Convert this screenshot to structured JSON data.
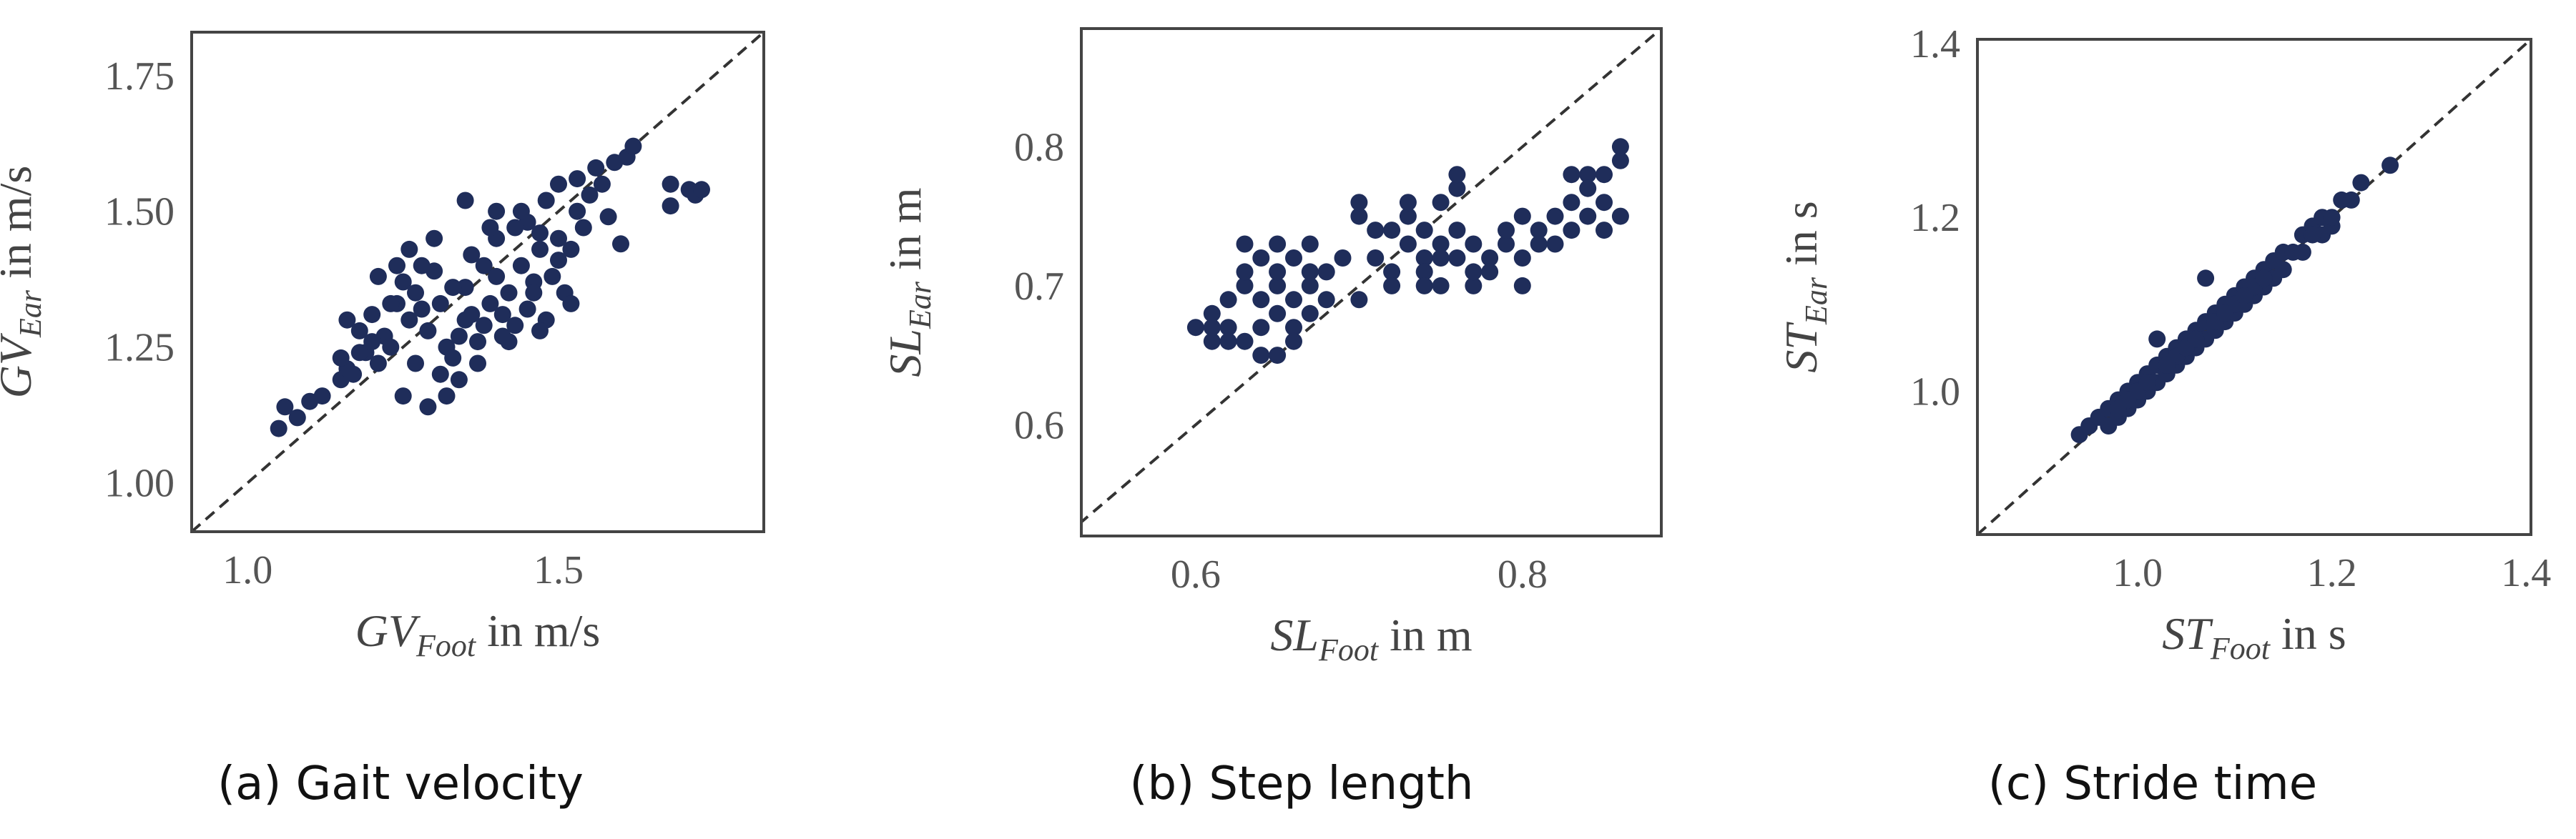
{
  "colors": {
    "points": "#1f2d5a",
    "frame": "#444444",
    "diagonal": "#333333"
  },
  "chart_data": [
    {
      "type": "scatter",
      "caption": "(a) Gait velocity",
      "xlabel": {
        "main": "GV",
        "sub": "Foot",
        "unit": "in m/s"
      },
      "ylabel": {
        "main": "GV",
        "sub": "Ear",
        "unit": "in m/s"
      },
      "xlim": [
        0.91,
        1.83
      ],
      "ylim": [
        0.91,
        1.83
      ],
      "xticks": [
        1.0,
        1.5
      ],
      "xtick_labels": [
        "1.0",
        "1.5"
      ],
      "yticks": [
        1.0,
        1.25,
        1.5,
        1.75
      ],
      "ytick_labels": [
        "1.00",
        "1.25",
        "1.50",
        "1.75"
      ],
      "identity_line": true,
      "grid": false,
      "points": [
        [
          1.05,
          1.1
        ],
        [
          1.06,
          1.14
        ],
        [
          1.08,
          1.12
        ],
        [
          1.1,
          1.15
        ],
        [
          1.12,
          1.16
        ],
        [
          1.15,
          1.19
        ],
        [
          1.16,
          1.21
        ],
        [
          1.17,
          1.2
        ],
        [
          1.16,
          1.3
        ],
        [
          1.18,
          1.28
        ],
        [
          1.19,
          1.24
        ],
        [
          1.2,
          1.31
        ],
        [
          1.21,
          1.22
        ],
        [
          1.22,
          1.27
        ],
        [
          1.23,
          1.25
        ],
        [
          1.24,
          1.33
        ],
        [
          1.24,
          1.4
        ],
        [
          1.25,
          1.37
        ],
        [
          1.26,
          1.3
        ],
        [
          1.26,
          1.43
        ],
        [
          1.27,
          1.35
        ],
        [
          1.28,
          1.32
        ],
        [
          1.29,
          1.28
        ],
        [
          1.3,
          1.45
        ],
        [
          1.3,
          1.39
        ],
        [
          1.31,
          1.2
        ],
        [
          1.32,
          1.25
        ],
        [
          1.32,
          1.16
        ],
        [
          1.33,
          1.23
        ],
        [
          1.34,
          1.27
        ],
        [
          1.35,
          1.3
        ],
        [
          1.35,
          1.36
        ],
        [
          1.36,
          1.42
        ],
        [
          1.37,
          1.26
        ],
        [
          1.38,
          1.29
        ],
        [
          1.38,
          1.4
        ],
        [
          1.39,
          1.33
        ],
        [
          1.4,
          1.38
        ],
        [
          1.4,
          1.45
        ],
        [
          1.41,
          1.31
        ],
        [
          1.42,
          1.26
        ],
        [
          1.42,
          1.35
        ],
        [
          1.43,
          1.29
        ],
        [
          1.44,
          1.4
        ],
        [
          1.45,
          1.32
        ],
        [
          1.45,
          1.48
        ],
        [
          1.46,
          1.37
        ],
        [
          1.47,
          1.43
        ],
        [
          1.48,
          1.3
        ],
        [
          1.48,
          1.52
        ],
        [
          1.49,
          1.38
        ],
        [
          1.5,
          1.41
        ],
        [
          1.5,
          1.45
        ],
        [
          1.51,
          1.35
        ],
        [
          1.52,
          1.43
        ],
        [
          1.53,
          1.5
        ],
        [
          1.53,
          1.56
        ],
        [
          1.54,
          1.47
        ],
        [
          1.55,
          1.53
        ],
        [
          1.56,
          1.58
        ],
        [
          1.57,
          1.55
        ],
        [
          1.58,
          1.49
        ],
        [
          1.59,
          1.59
        ],
        [
          1.6,
          1.44
        ],
        [
          1.61,
          1.6
        ],
        [
          1.62,
          1.62
        ],
        [
          1.29,
          1.14
        ],
        [
          1.34,
          1.19
        ],
        [
          1.27,
          1.22
        ],
        [
          1.23,
          1.33
        ],
        [
          1.21,
          1.38
        ],
        [
          1.31,
          1.33
        ],
        [
          1.39,
          1.47
        ],
        [
          1.44,
          1.5
        ],
        [
          1.47,
          1.46
        ],
        [
          1.36,
          1.31
        ],
        [
          1.41,
          1.27
        ],
        [
          1.25,
          1.16
        ],
        [
          1.18,
          1.24
        ],
        [
          1.46,
          1.35
        ],
        [
          1.68,
          1.55
        ],
        [
          1.71,
          1.54
        ],
        [
          1.72,
          1.53
        ],
        [
          1.68,
          1.51
        ],
        [
          1.73,
          1.54
        ],
        [
          1.35,
          1.52
        ],
        [
          1.4,
          1.5
        ],
        [
          1.5,
          1.55
        ],
        [
          1.28,
          1.4
        ],
        [
          1.33,
          1.36
        ],
        [
          1.2,
          1.26
        ],
        [
          1.15,
          1.23
        ],
        [
          1.37,
          1.22
        ],
        [
          1.43,
          1.47
        ],
        [
          1.52,
          1.33
        ],
        [
          1.47,
          1.28
        ]
      ]
    },
    {
      "type": "scatter",
      "caption": "(b) Step length",
      "xlabel": {
        "main": "SL",
        "sub": "Foot",
        "unit": "in m"
      },
      "ylabel": {
        "main": "SL",
        "sub": "Ear",
        "unit": "in m"
      },
      "xlim": [
        0.53,
        0.885
      ],
      "ylim": [
        0.52,
        0.885
      ],
      "xticks": [
        0.6,
        0.8
      ],
      "xtick_labels": [
        "0.6",
        "0.8"
      ],
      "yticks": [
        0.6,
        0.7,
        0.8
      ],
      "ytick_labels": [
        "0.6",
        "0.7",
        "0.8"
      ],
      "identity_line": true,
      "grid": false,
      "points": [
        [
          0.6,
          0.67
        ],
        [
          0.61,
          0.66
        ],
        [
          0.61,
          0.68
        ],
        [
          0.62,
          0.69
        ],
        [
          0.62,
          0.67
        ],
        [
          0.63,
          0.7
        ],
        [
          0.63,
          0.71
        ],
        [
          0.63,
          0.66
        ],
        [
          0.64,
          0.69
        ],
        [
          0.64,
          0.67
        ],
        [
          0.64,
          0.72
        ],
        [
          0.65,
          0.7
        ],
        [
          0.65,
          0.68
        ],
        [
          0.65,
          0.73
        ],
        [
          0.65,
          0.71
        ],
        [
          0.66,
          0.69
        ],
        [
          0.66,
          0.67
        ],
        [
          0.66,
          0.72
        ],
        [
          0.67,
          0.7
        ],
        [
          0.67,
          0.68
        ],
        [
          0.67,
          0.73
        ],
        [
          0.68,
          0.69
        ],
        [
          0.68,
          0.71
        ],
        [
          0.66,
          0.66
        ],
        [
          0.62,
          0.66
        ],
        [
          0.64,
          0.65
        ],
        [
          0.7,
          0.69
        ],
        [
          0.7,
          0.75
        ],
        [
          0.71,
          0.74
        ],
        [
          0.71,
          0.72
        ],
        [
          0.72,
          0.71
        ],
        [
          0.72,
          0.7
        ],
        [
          0.73,
          0.73
        ],
        [
          0.73,
          0.75
        ],
        [
          0.73,
          0.76
        ],
        [
          0.74,
          0.74
        ],
        [
          0.74,
          0.72
        ],
        [
          0.74,
          0.71
        ],
        [
          0.75,
          0.73
        ],
        [
          0.75,
          0.76
        ],
        [
          0.75,
          0.7
        ],
        [
          0.76,
          0.74
        ],
        [
          0.76,
          0.72
        ],
        [
          0.76,
          0.77
        ],
        [
          0.77,
          0.7
        ],
        [
          0.77,
          0.71
        ],
        [
          0.78,
          0.72
        ],
        [
          0.78,
          0.71
        ],
        [
          0.79,
          0.73
        ],
        [
          0.79,
          0.74
        ],
        [
          0.8,
          0.72
        ],
        [
          0.8,
          0.75
        ],
        [
          0.81,
          0.74
        ],
        [
          0.81,
          0.73
        ],
        [
          0.82,
          0.75
        ],
        [
          0.82,
          0.73
        ],
        [
          0.83,
          0.76
        ],
        [
          0.83,
          0.74
        ],
        [
          0.84,
          0.75
        ],
        [
          0.84,
          0.78
        ],
        [
          0.84,
          0.77
        ],
        [
          0.85,
          0.76
        ],
        [
          0.85,
          0.74
        ],
        [
          0.85,
          0.78
        ],
        [
          0.86,
          0.79
        ],
        [
          0.86,
          0.8
        ],
        [
          0.86,
          0.75
        ],
        [
          0.83,
          0.78
        ],
        [
          0.8,
          0.7
        ],
        [
          0.72,
          0.74
        ],
        [
          0.69,
          0.72
        ],
        [
          0.7,
          0.76
        ],
        [
          0.76,
          0.78
        ],
        [
          0.74,
          0.7
        ],
        [
          0.77,
          0.73
        ],
        [
          0.63,
          0.73
        ],
        [
          0.61,
          0.67
        ],
        [
          0.65,
          0.65
        ],
        [
          0.67,
          0.71
        ],
        [
          0.75,
          0.72
        ]
      ]
    },
    {
      "type": "scatter",
      "caption": "(c) Stride time",
      "xlabel": {
        "main": "ST",
        "sub": "Foot",
        "unit": "in s"
      },
      "ylabel": {
        "main": "ST",
        "sub": "Ear",
        "unit": "in s"
      },
      "xlim": [
        0.835,
        1.405
      ],
      "ylim": [
        0.835,
        1.405
      ],
      "xticks": [
        1.0,
        1.2,
        1.4
      ],
      "xtick_labels": [
        "1.0",
        "1.2",
        "1.4"
      ],
      "yticks": [
        1.0,
        1.2,
        1.4
      ],
      "ytick_labels": [
        "1.0",
        "1.2",
        "1.4"
      ],
      "identity_line": true,
      "grid": false,
      "points": [
        [
          0.94,
          0.95
        ],
        [
          0.95,
          0.96
        ],
        [
          0.96,
          0.97
        ],
        [
          0.97,
          0.98
        ],
        [
          0.97,
          0.96
        ],
        [
          0.98,
          0.99
        ],
        [
          0.98,
          0.97
        ],
        [
          0.99,
          1.0
        ],
        [
          0.99,
          0.98
        ],
        [
          1.0,
          1.01
        ],
        [
          1.0,
          0.99
        ],
        [
          1.01,
          1.02
        ],
        [
          1.01,
          1.0
        ],
        [
          1.02,
          1.03
        ],
        [
          1.02,
          1.01
        ],
        [
          1.03,
          1.04
        ],
        [
          1.03,
          1.02
        ],
        [
          1.04,
          1.05
        ],
        [
          1.04,
          1.03
        ],
        [
          1.05,
          1.06
        ],
        [
          1.05,
          1.04
        ],
        [
          1.06,
          1.07
        ],
        [
          1.06,
          1.05
        ],
        [
          1.07,
          1.08
        ],
        [
          1.07,
          1.06
        ],
        [
          1.08,
          1.09
        ],
        [
          1.08,
          1.07
        ],
        [
          1.09,
          1.1
        ],
        [
          1.09,
          1.08
        ],
        [
          1.1,
          1.11
        ],
        [
          1.1,
          1.09
        ],
        [
          1.11,
          1.12
        ],
        [
          1.11,
          1.1
        ],
        [
          1.12,
          1.13
        ],
        [
          1.12,
          1.11
        ],
        [
          1.13,
          1.14
        ],
        [
          1.13,
          1.12
        ],
        [
          1.14,
          1.15
        ],
        [
          1.14,
          1.13
        ],
        [
          1.15,
          1.16
        ],
        [
          1.16,
          1.16
        ],
        [
          1.17,
          1.18
        ],
        [
          1.18,
          1.19
        ],
        [
          1.19,
          1.2
        ],
        [
          1.19,
          1.18
        ],
        [
          1.2,
          1.19
        ],
        [
          1.21,
          1.22
        ],
        [
          1.22,
          1.22
        ],
        [
          1.23,
          1.24
        ],
        [
          1.26,
          1.26
        ],
        [
          1.02,
          1.06
        ],
        [
          1.07,
          1.13
        ],
        [
          1.04,
          1.04
        ],
        [
          1.0,
          1.0
        ],
        [
          0.99,
          0.99
        ],
        [
          1.05,
          1.05
        ],
        [
          1.08,
          1.08
        ],
        [
          1.1,
          1.1
        ],
        [
          1.12,
          1.12
        ],
        [
          1.15,
          1.14
        ],
        [
          1.17,
          1.16
        ],
        [
          1.03,
          1.03
        ],
        [
          0.98,
          0.98
        ],
        [
          1.01,
          1.01
        ],
        [
          1.06,
          1.06
        ],
        [
          1.13,
          1.13
        ],
        [
          1.18,
          1.18
        ],
        [
          1.2,
          1.2
        ],
        [
          1.09,
          1.09
        ],
        [
          1.11,
          1.11
        ]
      ]
    }
  ]
}
